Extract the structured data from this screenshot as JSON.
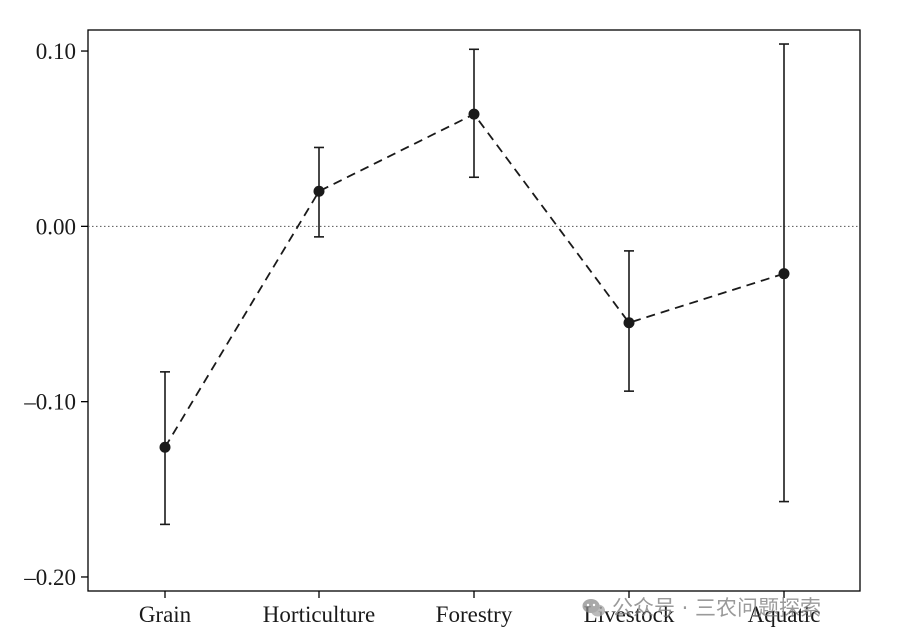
{
  "chart_data": {
    "type": "line",
    "categories": [
      "Grain",
      "Horticulture",
      "Forestry",
      "Livestock",
      "Aquatic"
    ],
    "series": [
      {
        "values": [
          -0.126,
          0.02,
          0.064,
          -0.055,
          -0.027
        ],
        "ci_lower": [
          -0.17,
          -0.006,
          0.028,
          -0.094,
          -0.157
        ],
        "ci_upper": [
          -0.083,
          0.045,
          0.101,
          -0.014,
          0.104
        ]
      }
    ],
    "yticks": [
      0.1,
      0.0,
      -0.1,
      -0.2
    ],
    "ytick_labels": [
      "0.10",
      "0.00",
      "–0.10",
      "–0.20"
    ],
    "ylim": [
      -0.208,
      0.112
    ],
    "reference_line": 0,
    "line_style": "dashed",
    "colors": {
      "marks": "#1a1a1a",
      "axis": "#000000",
      "reference": "#555555"
    }
  },
  "watermark": {
    "text": "公众号 · 三农问题探索",
    "icon": "wechat-icon"
  }
}
